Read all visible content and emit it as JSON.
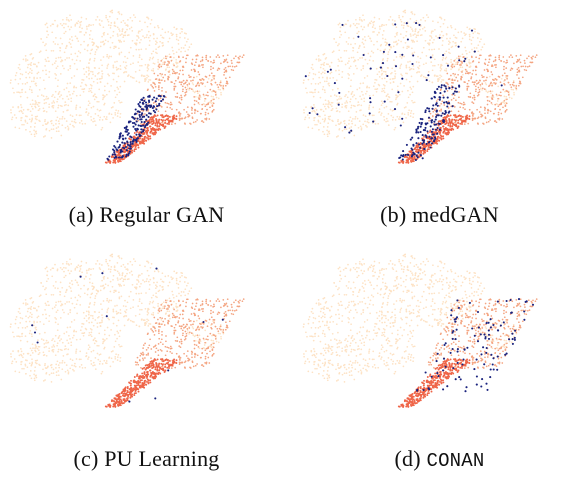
{
  "colors": {
    "background_cluster": "#fde2c4",
    "mid_cluster": "#f4a582",
    "dense_cluster": "#ef6548",
    "highlight": "#1a237e"
  },
  "chart_data": [
    {
      "type": "scatter",
      "panel_label": "(a)",
      "method": "Regular GAN",
      "method_monospace": false,
      "highlight_focus": "dense lower-right tail",
      "highlight_count": 190,
      "grid": false,
      "legend": "none"
    },
    {
      "type": "scatter",
      "panel_label": "(b)",
      "method": "medGAN",
      "method_monospace": false,
      "highlight_focus": "lower-right tail with sparse points across the map",
      "highlight_count": 210,
      "grid": false,
      "legend": "none"
    },
    {
      "type": "scatter",
      "panel_label": "(c)",
      "method": "PU Learning",
      "method_monospace": false,
      "highlight_focus": "few scattered points",
      "highlight_count": 12,
      "grid": false,
      "legend": "none"
    },
    {
      "type": "scatter",
      "panel_label": "(d)",
      "method": "CONAN",
      "method_monospace": true,
      "highlight_focus": "spread across the upper-right cluster",
      "highlight_count": 110,
      "grid": false,
      "legend": "none"
    }
  ]
}
